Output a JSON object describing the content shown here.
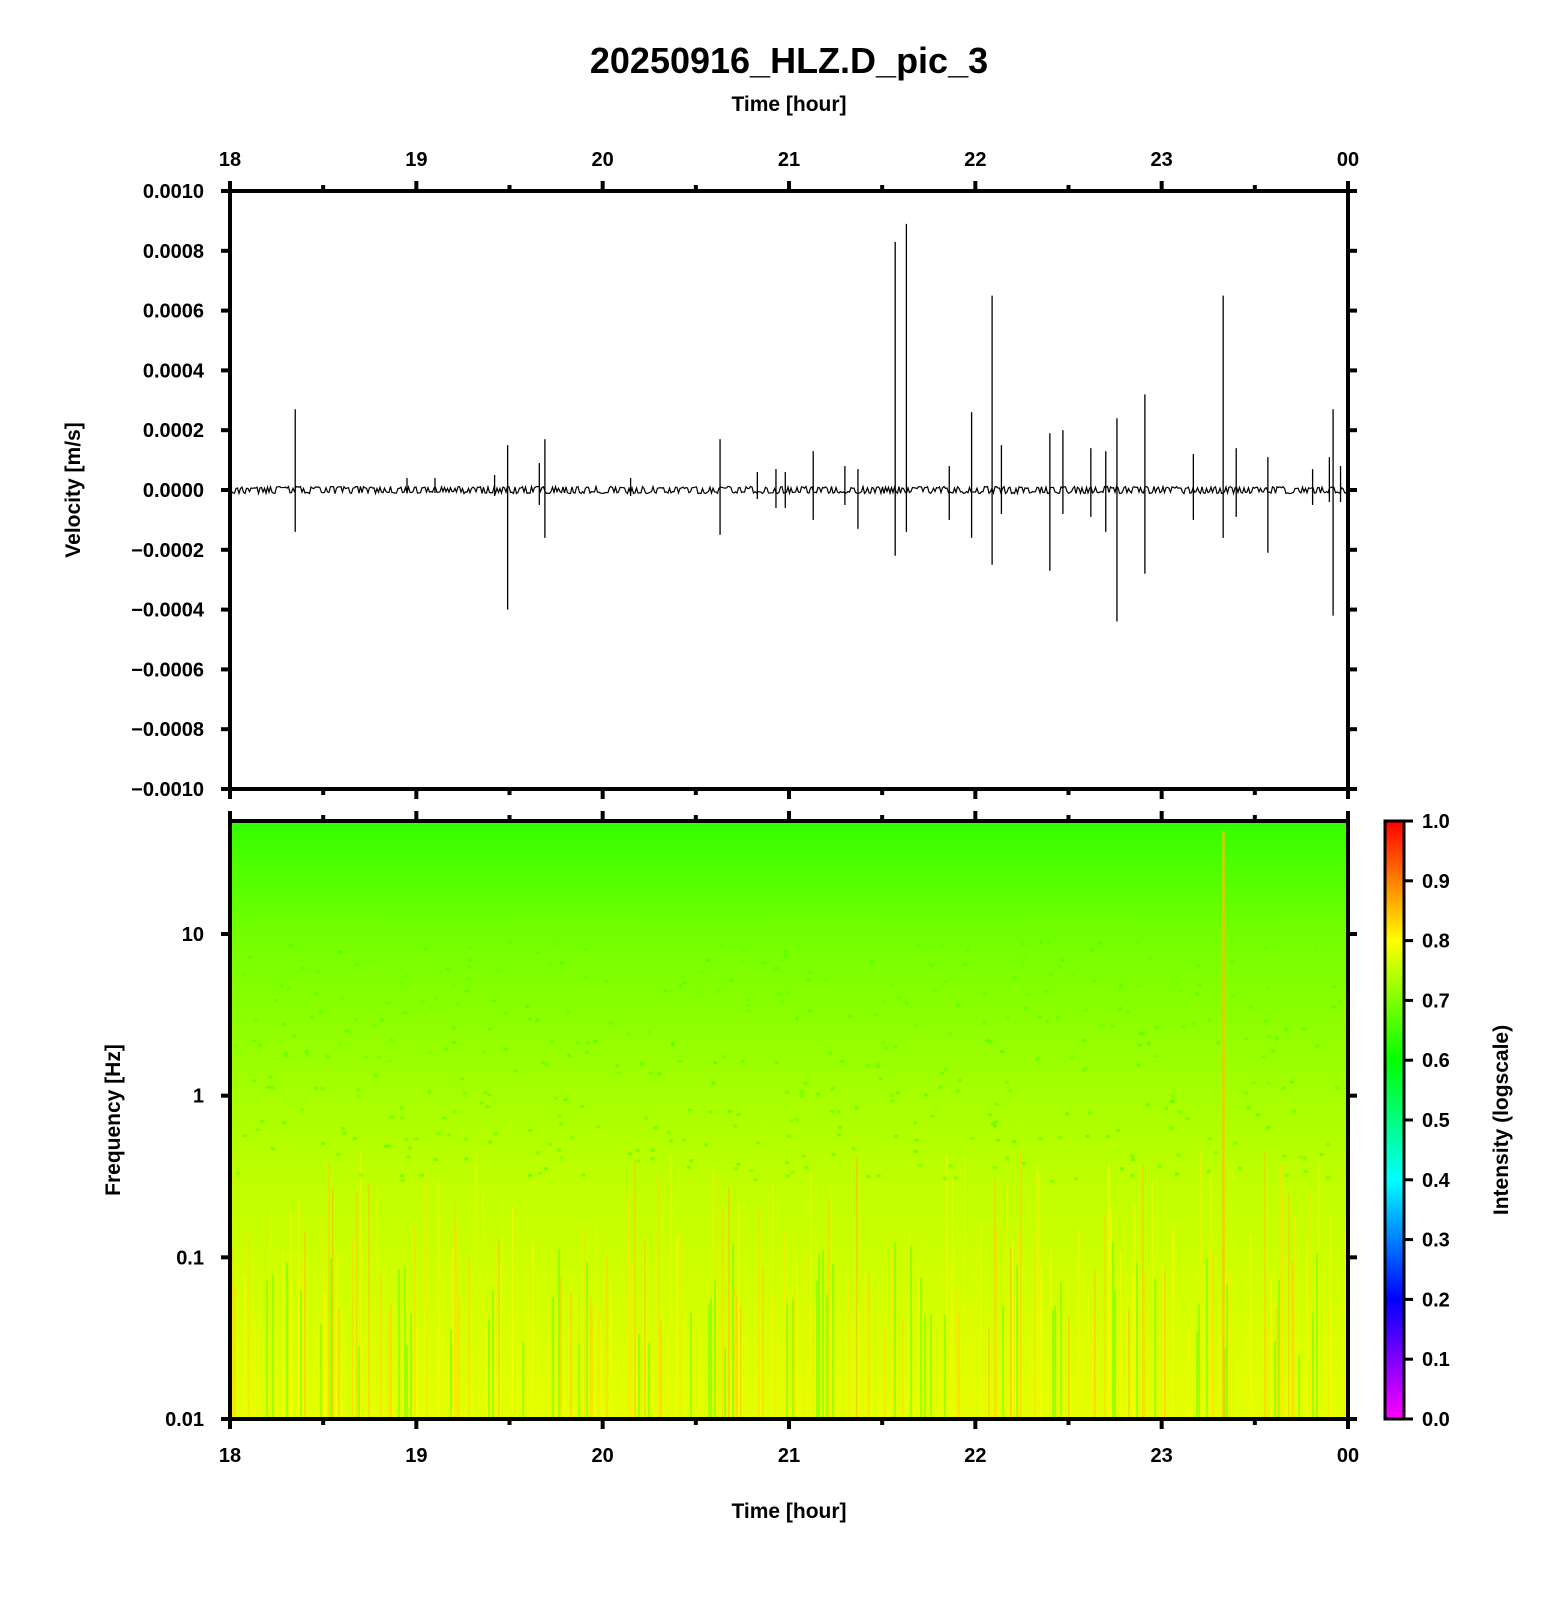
{
  "title": "20250916_HLZ.D_pic_3",
  "chart_data": [
    {
      "type": "line",
      "name": "waveform",
      "xlabel": "Time [hour]",
      "ylabel": "Velocity [m/s]",
      "x_ticks": [
        "18",
        "19",
        "20",
        "21",
        "22",
        "23",
        "00"
      ],
      "xlim": [
        18,
        24
      ],
      "ylim": [
        -0.001,
        0.001
      ],
      "y_ticks": [
        {
          "value": 0.001,
          "label": "0.0010"
        },
        {
          "value": 0.0008,
          "label": "0.0008"
        },
        {
          "value": 0.0006,
          "label": "0.0006"
        },
        {
          "value": 0.0004,
          "label": "0.0004"
        },
        {
          "value": 0.0002,
          "label": "0.0002"
        },
        {
          "value": 0.0,
          "label": "0.0000"
        },
        {
          "value": -0.0002,
          "label": "−0.0002"
        },
        {
          "value": -0.0004,
          "label": "−0.0004"
        },
        {
          "value": -0.0006,
          "label": "−0.0006"
        },
        {
          "value": -0.0008,
          "label": "−0.0008"
        },
        {
          "value": -0.001,
          "label": "−0.0010"
        }
      ],
      "noise_amplitude": 8e-06,
      "spikes": [
        {
          "t": 18.35,
          "max": 0.00027,
          "min": -0.00014
        },
        {
          "t": 18.95,
          "max": 4e-05,
          "min": -1e-05
        },
        {
          "t": 19.1,
          "max": 4e-05,
          "min": -1e-05
        },
        {
          "t": 19.42,
          "max": 5e-05,
          "min": -2e-05
        },
        {
          "t": 19.49,
          "max": 0.00015,
          "min": -0.0004
        },
        {
          "t": 19.66,
          "max": 9e-05,
          "min": -5e-05
        },
        {
          "t": 19.69,
          "max": 0.00017,
          "min": -0.00016
        },
        {
          "t": 20.15,
          "max": 4e-05,
          "min": -2e-05
        },
        {
          "t": 20.63,
          "max": 0.00017,
          "min": -0.00015
        },
        {
          "t": 20.83,
          "max": 6e-05,
          "min": -3e-05
        },
        {
          "t": 20.93,
          "max": 7e-05,
          "min": -6e-05
        },
        {
          "t": 20.98,
          "max": 6e-05,
          "min": -6e-05
        },
        {
          "t": 21.13,
          "max": 0.00013,
          "min": -0.0001
        },
        {
          "t": 21.3,
          "max": 8e-05,
          "min": -5e-05
        },
        {
          "t": 21.37,
          "max": 7e-05,
          "min": -0.00013
        },
        {
          "t": 21.57,
          "max": 0.00083,
          "min": -0.00022
        },
        {
          "t": 21.63,
          "max": 0.00089,
          "min": -0.00014
        },
        {
          "t": 21.86,
          "max": 8e-05,
          "min": -0.0001
        },
        {
          "t": 21.98,
          "max": 0.00026,
          "min": -0.00016
        },
        {
          "t": 22.09,
          "max": 0.00065,
          "min": -0.00025
        },
        {
          "t": 22.14,
          "max": 0.00015,
          "min": -8e-05
        },
        {
          "t": 22.4,
          "max": 0.00019,
          "min": -0.00027
        },
        {
          "t": 22.47,
          "max": 0.0002,
          "min": -8e-05
        },
        {
          "t": 22.62,
          "max": 0.00014,
          "min": -9e-05
        },
        {
          "t": 22.7,
          "max": 0.00013,
          "min": -0.00014
        },
        {
          "t": 22.76,
          "max": 0.00024,
          "min": -0.00044
        },
        {
          "t": 22.91,
          "max": 0.00032,
          "min": -0.00028
        },
        {
          "t": 23.17,
          "max": 0.00012,
          "min": -0.0001
        },
        {
          "t": 23.33,
          "max": 0.00065,
          "min": -0.00016
        },
        {
          "t": 23.4,
          "max": 0.00014,
          "min": -9e-05
        },
        {
          "t": 23.57,
          "max": 0.00011,
          "min": -0.00021
        },
        {
          "t": 23.81,
          "max": 7e-05,
          "min": -5e-05
        },
        {
          "t": 23.9,
          "max": 0.00011,
          "min": -4e-05
        },
        {
          "t": 23.92,
          "max": 0.00027,
          "min": -0.00042
        },
        {
          "t": 23.96,
          "max": 8e-05,
          "min": -4e-05
        }
      ]
    },
    {
      "type": "heatmap",
      "name": "spectrogram",
      "xlabel": "Time [hour]",
      "ylabel": "Frequency [Hz]",
      "x_ticks": [
        "18",
        "19",
        "20",
        "21",
        "22",
        "23",
        "00"
      ],
      "xlim": [
        18,
        24
      ],
      "y_scale": "log",
      "ylim": [
        0.01,
        50
      ],
      "y_ticks": [
        {
          "value": 10,
          "label": "10"
        },
        {
          "value": 1,
          "label": "1"
        },
        {
          "value": 0.1,
          "label": "0.1"
        },
        {
          "value": 0.01,
          "label": "0.01"
        }
      ],
      "intensity_profile": [
        {
          "freq": 50,
          "intensity": 0.64
        },
        {
          "freq": 10,
          "intensity": 0.69
        },
        {
          "freq": 3,
          "intensity": 0.71
        },
        {
          "freq": 1,
          "intensity": 0.73
        },
        {
          "freq": 0.3,
          "intensity": 0.75
        },
        {
          "freq": 0.1,
          "intensity": 0.76
        },
        {
          "freq": 0.01,
          "intensity": 0.78
        }
      ],
      "bright_column_t": 23.33,
      "colorbar": {
        "label": "Intensity (logscale)",
        "range": [
          0.0,
          1.0
        ],
        "ticks": [
          "0.0",
          "0.1",
          "0.2",
          "0.3",
          "0.4",
          "0.5",
          "0.6",
          "0.7",
          "0.8",
          "0.9",
          "1.0"
        ],
        "colors": [
          "#ff00ff",
          "#0000ff",
          "#00ffff",
          "#00ff00",
          "#ffff00",
          "#ff0000"
        ]
      }
    }
  ]
}
